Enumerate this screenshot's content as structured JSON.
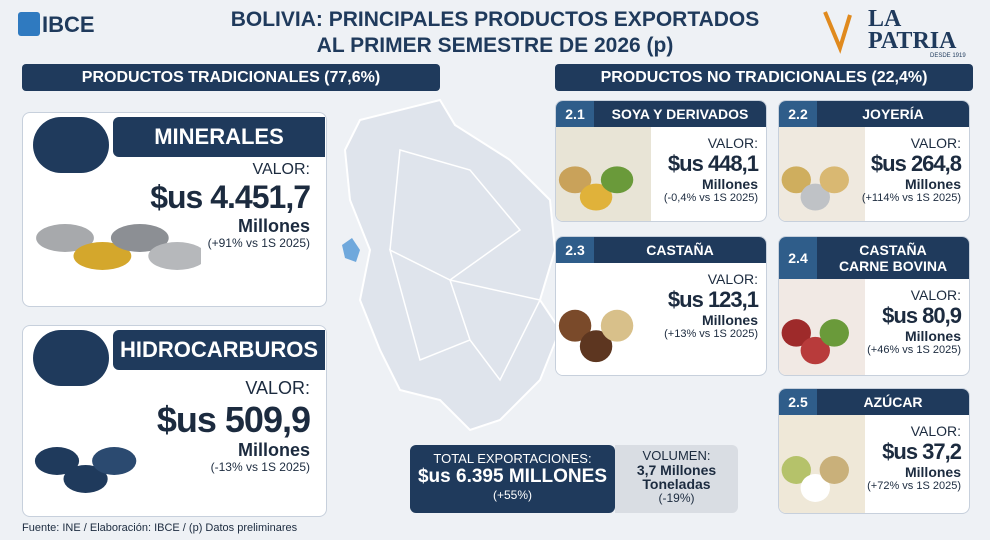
{
  "header": {
    "ibce": "IBCE",
    "title": [
      "BOLIVIA: PRINCIPALES PRODUCTOS EXPORTADOS",
      "AL PRIMER SEMESTRE DE 2026 (p)"
    ],
    "brand": {
      "la": "LA",
      "patria": "PATRIA",
      "since": "DESDE 1919"
    }
  },
  "traditional": {
    "heading": "PRODUCTOS TRADICIONALES (77,6%)",
    "items": [
      {
        "title": "MINERALES",
        "label": "VALOR:",
        "value": "$us 4.451,7",
        "unit": "Millones",
        "change": "(+91% vs 1S 2025)"
      },
      {
        "title": "HIDROCARBUROS",
        "label": "VALOR:",
        "value": "$us 509,9",
        "unit": "Millones",
        "change": "(-13% vs 1S 2025)"
      }
    ]
  },
  "non_traditional": {
    "heading": "PRODUCTOS NO TRADICIONALES (22,4%)",
    "items": [
      {
        "number": "2.1",
        "title": [
          "SOYA Y DERIVADOS"
        ],
        "label": "VALOR:",
        "value": "$us 448,1",
        "unit": "Millones",
        "change": "(-0,4% vs 1S 2025)"
      },
      {
        "number": "2.2",
        "title": [
          "JOYERÍA"
        ],
        "label": "VALOR:",
        "value": "$us 264,8",
        "unit": "Millones",
        "change": "(+114% vs 1S 2025)"
      },
      {
        "number": "2.3",
        "title": [
          "CASTAÑA"
        ],
        "label": "VALOR:",
        "value": "$us 123,1",
        "unit": "Millones",
        "change": "(+13% vs 1S 2025)"
      },
      {
        "number": "2.4",
        "title": [
          "CASTAÑA",
          "CARNE BOVINA"
        ],
        "label": "VALOR:",
        "value": "$us 80,9",
        "unit": "Millones",
        "change": "(+46% vs 1S 2025)"
      },
      {
        "number": "2.5",
        "title": [
          "AZÚCAR"
        ],
        "label": "VALOR:",
        "value": "$us 37,2",
        "unit": "Millones",
        "change": "(+72% vs 1S 2025)"
      }
    ]
  },
  "total": {
    "label": "TOTAL EXPORTACIONES:",
    "value": "$us 6.395 MILLONES",
    "change": "(+55%)"
  },
  "volume": {
    "label": "VOLUMEN:",
    "value": [
      "3,7 Millones",
      "Toneladas"
    ],
    "change": "(-19%)"
  },
  "footer": "Fuente: INE / Elaboración: IBCE / (p) Datos preliminares"
}
